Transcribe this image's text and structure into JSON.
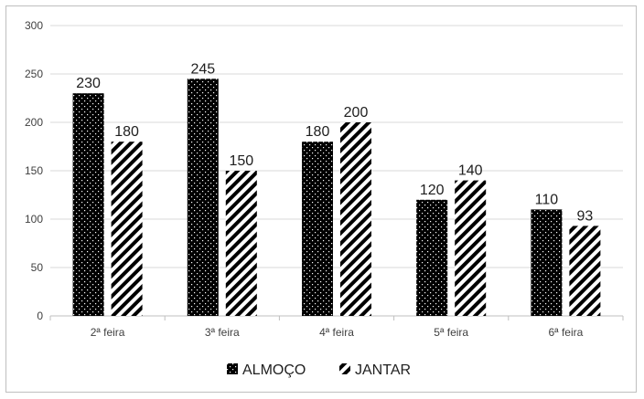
{
  "chart_data": {
    "type": "bar",
    "categories": [
      "2ª feira",
      "3ª feira",
      "4ª feira",
      "5ª feira",
      "6ª feira"
    ],
    "series": [
      {
        "name": "ALMOÇO",
        "values": [
          230,
          245,
          180,
          120,
          110
        ],
        "pattern": "dotted-black"
      },
      {
        "name": "JANTAR",
        "values": [
          180,
          150,
          200,
          140,
          93
        ],
        "pattern": "diagonal-stripes"
      }
    ],
    "title": "",
    "xlabel": "",
    "ylabel": "",
    "ylim": [
      0,
      300
    ],
    "yticks": [
      0,
      50,
      100,
      150,
      200,
      250,
      300
    ],
    "grid": true,
    "legend_position": "bottom",
    "colors": {
      "bar_dark": "#000000",
      "stripe": "#000000",
      "grid": "#d9d9d9",
      "axis": "#bfbfbf"
    }
  }
}
